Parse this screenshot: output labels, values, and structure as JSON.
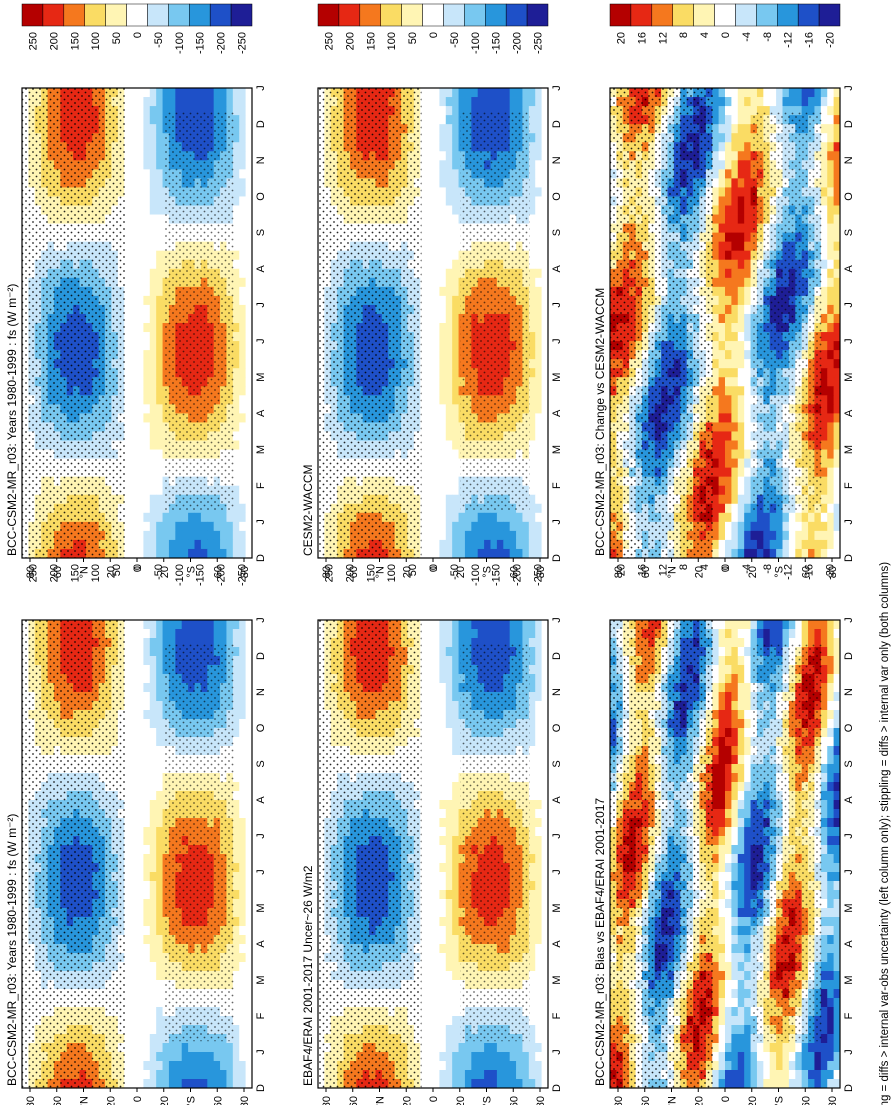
{
  "figure": {
    "caption": "hatching = diffs > internal var-obs uncertainty (left column only); stippling = diffs > internal var only (both columns)"
  },
  "colors": {
    "deep_red": "#b40000",
    "red": "#e62814",
    "orange": "#f5781e",
    "yellow": "#fadc64",
    "pale_yellow": "#fff5b4",
    "white": "#ffffff",
    "pale_blue": "#c8e6fa",
    "light_blue": "#78c8f0",
    "blue": "#2896dc",
    "dark_blue": "#1e50c8",
    "navy": "#1e1e96"
  },
  "chart_data": [
    {
      "type": "heatmap",
      "panel": "top-left",
      "title": "BCC-CSM2-MR_r03: Years 1980-1999 : fs (W m⁻²)",
      "xlabel": "",
      "ylabel": "",
      "x_ticks": [
        "80",
        "60",
        "°N",
        "20",
        "0",
        "20",
        "°S",
        "60",
        "80"
      ],
      "y_ticks": [
        "D",
        "J",
        "F",
        "M",
        "A",
        "M",
        "J",
        "J",
        "A",
        "S",
        "O",
        "N",
        "D",
        "J"
      ],
      "colorbar_labels": [
        "250",
        "200",
        "150",
        "100",
        "50",
        "0",
        "-50",
        "-100",
        "-150",
        "-200",
        "-250"
      ],
      "colorbar_range": [
        -250,
        250
      ],
      "pattern": "annual",
      "seed": 1
    },
    {
      "type": "heatmap",
      "panel": "top-right",
      "title": "BCC-CSM2-MR_r03: Years 1980-1999 : fs (W m⁻²)",
      "xlabel": "",
      "ylabel": "",
      "x_ticks": [
        "80",
        "60",
        "°N",
        "20",
        "0",
        "20",
        "°S",
        "60",
        "80"
      ],
      "y_ticks": [
        "D",
        "J",
        "F",
        "M",
        "A",
        "M",
        "J",
        "J",
        "A",
        "S",
        "O",
        "N",
        "D",
        "J"
      ],
      "colorbar_labels": [
        "250",
        "200",
        "150",
        "100",
        "50",
        "0",
        "-50",
        "-100",
        "-150",
        "-200",
        "-250"
      ],
      "colorbar_range": [
        -250,
        250
      ],
      "pattern": "annual",
      "seed": 2
    },
    {
      "type": "heatmap",
      "panel": "middle-left",
      "title": "EBAF4/ERAI 2001-2017 Uncer~26 W/m2",
      "xlabel": "",
      "ylabel": "",
      "x_ticks": [
        "80",
        "60",
        "°N",
        "20",
        "0",
        "20",
        "°S",
        "60",
        "80"
      ],
      "y_ticks": [
        "D",
        "J",
        "F",
        "M",
        "A",
        "M",
        "J",
        "J",
        "A",
        "S",
        "O",
        "N",
        "D",
        "J"
      ],
      "colorbar_labels": [
        "250",
        "200",
        "150",
        "100",
        "50",
        "0",
        "-50",
        "-100",
        "-150",
        "-200",
        "-250"
      ],
      "colorbar_range": [
        -250,
        250
      ],
      "pattern": "annual",
      "seed": 3
    },
    {
      "type": "heatmap",
      "panel": "middle-right",
      "title": "CESM2-WACCM",
      "xlabel": "",
      "ylabel": "",
      "x_ticks": [
        "80",
        "60",
        "°N",
        "20",
        "0",
        "20",
        "°S",
        "60",
        "80"
      ],
      "y_ticks": [
        "D",
        "J",
        "F",
        "M",
        "A",
        "M",
        "J",
        "J",
        "A",
        "S",
        "O",
        "N",
        "D",
        "J"
      ],
      "colorbar_labels": [
        "250",
        "200",
        "150",
        "100",
        "50",
        "0",
        "-50",
        "-100",
        "-150",
        "-200",
        "-250"
      ],
      "colorbar_range": [
        -250,
        250
      ],
      "pattern": "annual",
      "seed": 4
    },
    {
      "type": "heatmap",
      "panel": "bottom-left",
      "title": "BCC-CSM2-MR_r03: Bias vs EBAF4/ERAI 2001-2017",
      "xlabel": "",
      "ylabel": "",
      "x_ticks": [
        "80",
        "60",
        "°N",
        "20",
        "0",
        "20",
        "°S",
        "60",
        "80"
      ],
      "y_ticks": [
        "D",
        "J",
        "F",
        "M",
        "A",
        "M",
        "J",
        "J",
        "A",
        "S",
        "O",
        "N",
        "D",
        "J"
      ],
      "colorbar_labels": [
        "20",
        "16",
        "12",
        "8",
        "4",
        "0",
        "-4",
        "-8",
        "-12",
        "-16",
        "-20"
      ],
      "colorbar_range": [
        -20,
        20
      ],
      "pattern": "bands",
      "seed": 5
    },
    {
      "type": "heatmap",
      "panel": "bottom-right",
      "title": "BCC-CSM2-MR_r03: Change vs CESM2-WACCM",
      "xlabel": "",
      "ylabel": "",
      "x_ticks": [
        "80",
        "60",
        "°N",
        "20",
        "0",
        "20",
        "°S",
        "60",
        "80"
      ],
      "y_ticks": [
        "D",
        "J",
        "F",
        "M",
        "A",
        "M",
        "J",
        "J",
        "A",
        "S",
        "O",
        "N",
        "D",
        "J"
      ],
      "colorbar_labels": [
        "20",
        "16",
        "12",
        "8",
        "4",
        "0",
        "-4",
        "-8",
        "-12",
        "-16",
        "-20"
      ],
      "colorbar_range": [
        -20,
        20
      ],
      "pattern": "bands2",
      "seed": 6
    }
  ]
}
